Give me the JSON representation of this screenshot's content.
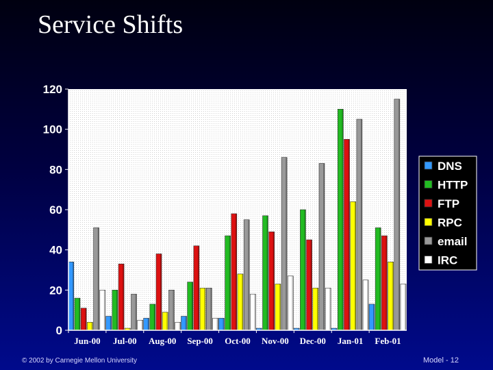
{
  "slide": {
    "title": "Service Shifts",
    "footer_left": "© 2002 by Carnegie Mellon University",
    "footer_right": "Model - 12"
  },
  "chart_data": {
    "type": "bar",
    "categories": [
      "Jun-00",
      "Jul-00",
      "Aug-00",
      "Sep-00",
      "Oct-00",
      "Nov-00",
      "Dec-00",
      "Jan-01",
      "Feb-01"
    ],
    "series": [
      {
        "name": "DNS",
        "color": "#3399ff",
        "values": [
          34,
          7,
          6,
          7,
          6,
          1,
          1,
          1,
          13
        ]
      },
      {
        "name": "HTTP",
        "color": "#22bb22",
        "values": [
          16,
          20,
          13,
          24,
          47,
          57,
          60,
          110,
          51
        ]
      },
      {
        "name": "FTP",
        "color": "#dd1111",
        "values": [
          11,
          33,
          38,
          42,
          58,
          49,
          45,
          95,
          47
        ]
      },
      {
        "name": "RPC",
        "color": "#ffff00",
        "values": [
          4,
          1,
          9,
          21,
          28,
          23,
          21,
          64,
          34
        ]
      },
      {
        "name": "email",
        "color": "#999999",
        "values": [
          51,
          18,
          20,
          21,
          55,
          86,
          83,
          105,
          115
        ]
      },
      {
        "name": "IRC",
        "color": "#ffffff",
        "values": [
          20,
          5,
          4,
          6,
          18,
          27,
          21,
          25,
          23
        ]
      }
    ],
    "yticks": [
      0,
      20,
      40,
      60,
      80,
      100,
      120
    ],
    "ylim": [
      0,
      120
    ],
    "grid": false,
    "legend_position": "right"
  }
}
